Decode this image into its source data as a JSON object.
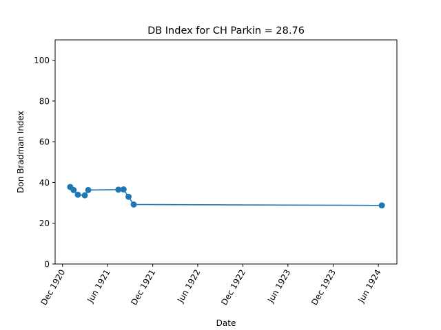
{
  "chart_data": {
    "type": "line",
    "title": "DB Index for CH Parkin = 28.76",
    "xlabel": "Date",
    "ylabel": "Don Bradman Index",
    "ylim": [
      0,
      110
    ],
    "yticks": [
      0,
      20,
      40,
      60,
      80,
      100
    ],
    "xlim": [
      "1920-11-01",
      "1924-08-15"
    ],
    "xticks": [
      {
        "date": "1920-12-01",
        "label": "Dec 1920"
      },
      {
        "date": "1921-06-01",
        "label": "Jun 1921"
      },
      {
        "date": "1921-12-01",
        "label": "Dec 1921"
      },
      {
        "date": "1922-06-01",
        "label": "Jun 1922"
      },
      {
        "date": "1922-12-01",
        "label": "Dec 1922"
      },
      {
        "date": "1923-06-01",
        "label": "Jun 1923"
      },
      {
        "date": "1923-12-01",
        "label": "Dec 1923"
      },
      {
        "date": "1924-06-01",
        "label": "Jun 1924"
      }
    ],
    "grid": false,
    "color": "#1f77b4",
    "series": [
      {
        "x": [
          "1921-01-01",
          "1921-01-15",
          "1921-02-01",
          "1921-03-01",
          "1921-03-15",
          "1921-07-15",
          "1921-08-05",
          "1921-08-25",
          "1921-09-15",
          "1924-06-15"
        ],
        "y": [
          37.8,
          36.3,
          34.0,
          33.7,
          36.3,
          36.5,
          36.6,
          33.0,
          29.2,
          28.76
        ]
      }
    ]
  }
}
